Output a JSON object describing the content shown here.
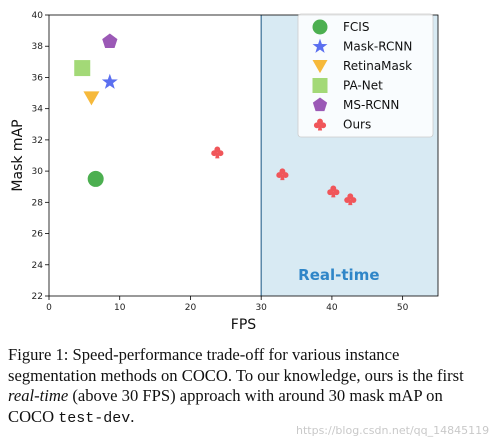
{
  "chart_data": {
    "type": "scatter",
    "xlabel": "FPS",
    "ylabel": "Mask mAP",
    "xlim": [
      0,
      55
    ],
    "ylim": [
      22,
      40
    ],
    "xticks": [
      "0",
      "10",
      "20",
      "30",
      "40",
      "50"
    ],
    "yticks": [
      "22",
      "24",
      "26",
      "28",
      "30",
      "32",
      "34",
      "36",
      "38",
      "40"
    ],
    "grid": false,
    "legend_position": "top-right",
    "shaded_region": {
      "x_from": 30,
      "x_to": 55,
      "label": "Real-time",
      "color": "#d8eaf3",
      "edge_color": "#3a6f96"
    },
    "series": [
      {
        "name": "FCIS",
        "marker": "circle",
        "color": "#4caf50",
        "points": [
          [
            6.6,
            29.5
          ]
        ]
      },
      {
        "name": "Mask-RCNN",
        "marker": "star",
        "color": "#5b6ff0",
        "points": [
          [
            8.6,
            35.7
          ]
        ]
      },
      {
        "name": "RetinaMask",
        "marker": "triangle-down",
        "color": "#f6b93b",
        "points": [
          [
            6.0,
            34.7
          ]
        ]
      },
      {
        "name": "PA-Net",
        "marker": "square",
        "color": "#a3d977",
        "points": [
          [
            4.7,
            36.6
          ]
        ]
      },
      {
        "name": "MS-RCNN",
        "marker": "pentagon",
        "color": "#9b59b6",
        "points": [
          [
            8.6,
            38.3
          ]
        ]
      },
      {
        "name": "Ours",
        "marker": "club",
        "color": "#f0565a",
        "points": [
          [
            23.8,
            31.2
          ],
          [
            33.0,
            29.8
          ],
          [
            40.2,
            28.7
          ],
          [
            42.6,
            28.2
          ]
        ]
      }
    ]
  },
  "caption": {
    "lead": "Figure 1: Speed-performance trade-off for various instance segmentation methods on COCO. To our knowledge, ours is the first ",
    "emph": "real-time",
    "mid": " (above 30 FPS) approach with around 30 mask mAP on COCO ",
    "code": "test-dev",
    "tail": "."
  },
  "watermark": "https://blog.csdn.net/qq_14845119"
}
